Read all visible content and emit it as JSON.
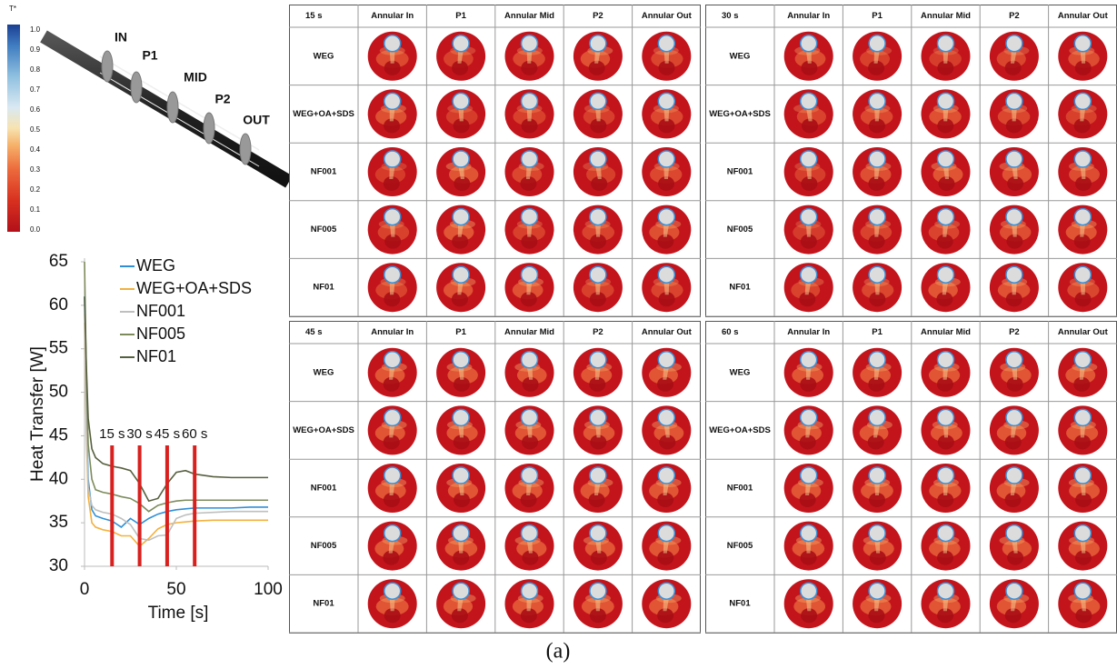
{
  "colorbar": {
    "title": "T*",
    "ticks": [
      {
        "value": 0,
        "label": "0.0"
      },
      0.1,
      0.2,
      0.3,
      0.4,
      0.5,
      0.6,
      0.7,
      0.8,
      0.9,
      {
        "value": 1,
        "label": "1.0"
      }
    ]
  },
  "schematic": {
    "labels": [
      "IN",
      "P1",
      "MID",
      "P2",
      "OUT"
    ]
  },
  "chart_data": {
    "type": "line",
    "xlabel": "Time [s]",
    "ylabel": "Heat Transfer [W]",
    "x": [
      0,
      1,
      2,
      4,
      6,
      10,
      15,
      20,
      25,
      30,
      35,
      40,
      45,
      50,
      55,
      60,
      70,
      80,
      90,
      100
    ],
    "series": [
      {
        "name": "WEG",
        "color": "#2f8fd6",
        "values": [
          61,
          48,
          40,
          36.5,
          35.8,
          35.5,
          35.2,
          34.5,
          35.5,
          34.8,
          35.5,
          36,
          36.3,
          36.5,
          36.6,
          36.7,
          36.7,
          36.7,
          36.8,
          36.8
        ]
      },
      {
        "name": "WEG+OA+SDS",
        "color": "#f2b13f",
        "values": [
          58,
          45,
          38,
          35,
          34.5,
          34.2,
          34,
          33.5,
          33.5,
          32.3,
          33.2,
          34.3,
          34.8,
          35,
          35.1,
          35.2,
          35.3,
          35.3,
          35.3,
          35.3
        ]
      },
      {
        "name": "NF001",
        "color": "#bfbfbf",
        "values": [
          59,
          46,
          39,
          37,
          36.5,
          36.2,
          36,
          35.5,
          34.8,
          33.2,
          33,
          33.5,
          33.6,
          35.5,
          35.9,
          36.1,
          36.2,
          36.3,
          36.3,
          36.3
        ]
      },
      {
        "name": "NF005",
        "color": "#7d8b5b",
        "values": [
          65,
          52,
          44,
          40,
          38.8,
          38.5,
          38.3,
          38,
          37.8,
          37.2,
          36.3,
          37,
          37.3,
          37.5,
          37.6,
          37.6,
          37.6,
          37.6,
          37.6,
          37.6
        ]
      },
      {
        "name": "NF01",
        "color": "#56603f",
        "values": [
          61,
          53,
          47,
          43.5,
          42.5,
          41.8,
          41.5,
          41.3,
          41,
          39.5,
          37.5,
          37.8,
          39.5,
          40.8,
          41,
          40.6,
          40.3,
          40.2,
          40.2,
          40.2
        ]
      }
    ],
    "markers": [
      {
        "x": 15,
        "label": "15 s"
      },
      {
        "x": 30,
        "label": "30 s"
      },
      {
        "x": 45,
        "label": "45 s"
      },
      {
        "x": 60,
        "label": "60 s"
      }
    ],
    "marker_color": "#d8201e",
    "xlim": [
      0,
      100
    ],
    "ylim": [
      30,
      65
    ],
    "xticks": [
      0,
      50,
      100
    ],
    "yticks": [
      30,
      35,
      40,
      45,
      50,
      55,
      60,
      65
    ]
  },
  "grid_panels": {
    "times": [
      "15 s",
      "30 s",
      "45 s",
      "60 s"
    ],
    "columns": [
      "Annular In",
      "P1",
      "Annular Mid",
      "P2",
      "Annular Out"
    ],
    "rows": [
      "WEG",
      "WEG+OA+SDS",
      "NF001",
      "NF005",
      "NF01"
    ]
  },
  "caption": "(a)"
}
